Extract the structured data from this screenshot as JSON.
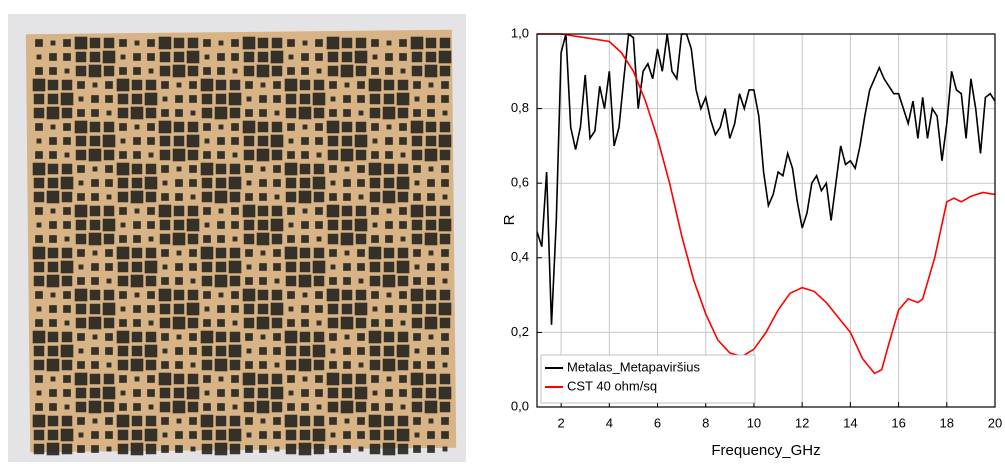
{
  "chart_data": {
    "type": "line",
    "xlabel": "Frequency_GHz",
    "ylabel": "R",
    "xlim": [
      1,
      20
    ],
    "ylim": [
      0,
      1
    ],
    "xticks": [
      2,
      4,
      6,
      8,
      10,
      12,
      14,
      16,
      18,
      20
    ],
    "yticks": [
      {
        "value": 0,
        "label": "0,0"
      },
      {
        "value": 0.2,
        "label": "0,2"
      },
      {
        "value": 0.4,
        "label": "0,4"
      },
      {
        "value": 0.6,
        "label": "0,6"
      },
      {
        "value": 0.8,
        "label": "0,8"
      },
      {
        "value": 1,
        "label": "1,0"
      }
    ],
    "grid": true,
    "legend": "lower left",
    "series": [
      {
        "name": "Metalas_Metapaviršius",
        "color": "#000000",
        "x": [
          1.0,
          1.2,
          1.4,
          1.6,
          1.8,
          2.0,
          2.2,
          2.4,
          2.6,
          2.8,
          3.0,
          3.2,
          3.4,
          3.6,
          3.8,
          4.0,
          4.2,
          4.4,
          4.6,
          4.8,
          5.0,
          5.2,
          5.4,
          5.6,
          5.8,
          6.0,
          6.2,
          6.4,
          6.6,
          6.8,
          7.0,
          7.2,
          7.4,
          7.6,
          7.8,
          8.0,
          8.2,
          8.4,
          8.6,
          8.8,
          9.0,
          9.2,
          9.4,
          9.6,
          9.8,
          10.0,
          10.2,
          10.4,
          10.6,
          10.8,
          11.0,
          11.2,
          11.4,
          11.6,
          11.8,
          12.0,
          12.2,
          12.4,
          12.6,
          12.8,
          13.0,
          13.2,
          13.4,
          13.6,
          13.8,
          14.0,
          14.2,
          14.4,
          14.6,
          14.8,
          15.0,
          15.2,
          15.4,
          15.6,
          15.8,
          16.0,
          16.2,
          16.4,
          16.6,
          16.8,
          17.0,
          17.2,
          17.4,
          17.6,
          17.8,
          18.0,
          18.2,
          18.4,
          18.6,
          18.8,
          19.0,
          19.2,
          19.4,
          19.6,
          19.8,
          20.0
        ],
        "values": [
          0.47,
          0.43,
          0.63,
          0.22,
          0.5,
          0.95,
          1.0,
          0.75,
          0.69,
          0.75,
          0.89,
          0.72,
          0.74,
          0.86,
          0.8,
          0.9,
          0.7,
          0.75,
          0.88,
          1.0,
          0.99,
          0.8,
          0.9,
          0.92,
          0.88,
          0.96,
          0.9,
          1.0,
          0.9,
          0.88,
          1.0,
          1.0,
          0.96,
          0.85,
          0.8,
          0.83,
          0.77,
          0.73,
          0.75,
          0.8,
          0.72,
          0.76,
          0.84,
          0.8,
          0.85,
          0.85,
          0.78,
          0.63,
          0.54,
          0.57,
          0.63,
          0.62,
          0.68,
          0.64,
          0.55,
          0.48,
          0.52,
          0.6,
          0.62,
          0.58,
          0.6,
          0.5,
          0.6,
          0.7,
          0.65,
          0.66,
          0.64,
          0.7,
          0.78,
          0.85,
          0.88,
          0.91,
          0.88,
          0.86,
          0.84,
          0.84,
          0.8,
          0.76,
          0.82,
          0.72,
          0.83,
          0.72,
          0.8,
          0.78,
          0.66,
          0.76,
          0.9,
          0.85,
          0.84,
          0.72,
          0.88,
          0.8,
          0.68,
          0.83,
          0.84,
          0.82
        ]
      },
      {
        "name": "CST 40 ohm/sq",
        "color": "#ff0000",
        "x": [
          1.0,
          2.0,
          3.0,
          4.0,
          4.5,
          5.0,
          5.5,
          6.0,
          6.5,
          7.0,
          7.5,
          8.0,
          8.5,
          9.0,
          9.5,
          10.0,
          10.5,
          11.0,
          11.5,
          12.0,
          12.5,
          13.0,
          13.5,
          14.0,
          14.5,
          15.0,
          15.3,
          15.6,
          16.0,
          16.4,
          16.8,
          17.0,
          17.5,
          18.0,
          18.3,
          18.6,
          19.0,
          19.5,
          20.0
        ],
        "values": [
          1.0,
          1.0,
          0.99,
          0.98,
          0.95,
          0.9,
          0.82,
          0.72,
          0.6,
          0.46,
          0.34,
          0.25,
          0.18,
          0.145,
          0.135,
          0.155,
          0.2,
          0.26,
          0.305,
          0.32,
          0.31,
          0.28,
          0.24,
          0.2,
          0.13,
          0.09,
          0.1,
          0.17,
          0.26,
          0.29,
          0.28,
          0.29,
          0.4,
          0.55,
          0.56,
          0.55,
          0.565,
          0.575,
          0.57
        ]
      }
    ]
  }
}
